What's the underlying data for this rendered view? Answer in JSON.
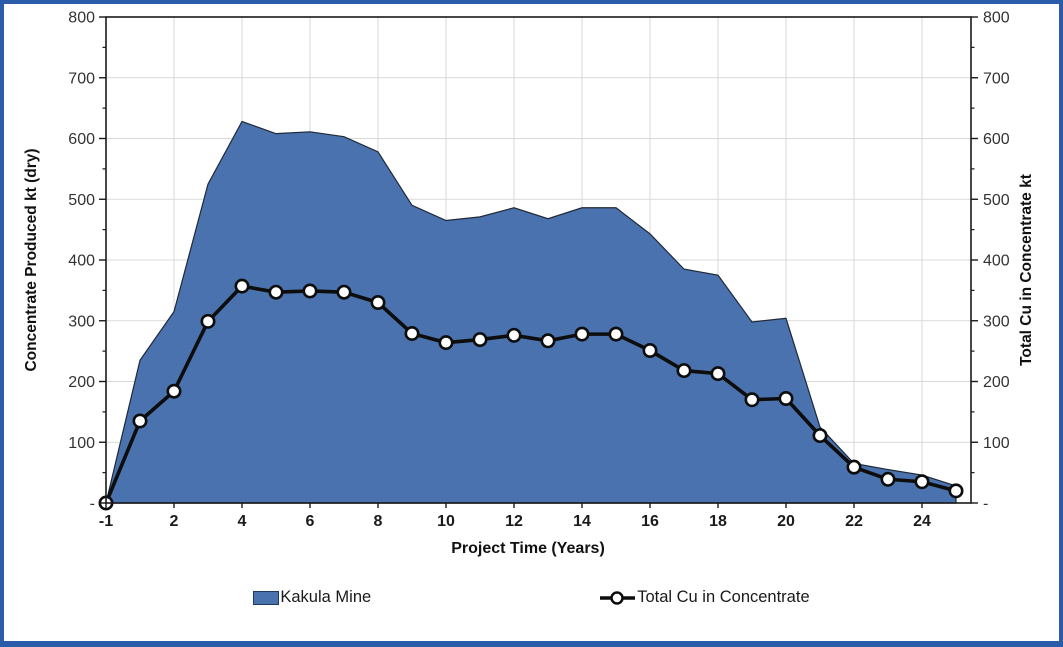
{
  "frame": {
    "border_color": "#2a5caa",
    "background": "#ffffff"
  },
  "chart_data": {
    "type": "combo-area-line",
    "title": "",
    "x_label": "Project Time (Years)",
    "y_left_label": "Concentrate Produced kt (dry)",
    "y_right_label": "Total Cu in Concentrate kt",
    "x_categories": [
      -1,
      1,
      2,
      3,
      4,
      5,
      6,
      7,
      8,
      9,
      10,
      11,
      12,
      13,
      14,
      15,
      16,
      17,
      18,
      19,
      20,
      21,
      22,
      23,
      24,
      25
    ],
    "x_tick_labels": [
      -1,
      2,
      4,
      6,
      8,
      10,
      12,
      14,
      16,
      18,
      20,
      22,
      24
    ],
    "ylim": [
      0,
      800
    ],
    "y_tick_values": [
      0,
      100,
      200,
      300,
      400,
      500,
      600,
      700,
      800
    ],
    "y_minor_step": 50,
    "zero_tick_label": "-",
    "grid": true,
    "legend_position": "bottom",
    "colors": {
      "area_fill": "#4a72ae",
      "area_outline": "#1f2937",
      "line": "#0d0d0d",
      "marker_fill": "#ffffff",
      "gridline": "#d9d9d9",
      "axis": "#1a1a1a",
      "tick_label": "#333333"
    },
    "series": [
      {
        "name": "Kakula Mine",
        "type": "area",
        "axis": "left",
        "values": [
          0,
          235,
          315,
          525,
          628,
          608,
          611,
          603,
          578,
          490,
          465,
          471,
          486,
          468,
          486,
          486,
          443,
          385,
          375,
          298,
          304,
          125,
          65,
          55,
          46,
          28
        ]
      },
      {
        "name": "Total Cu in Concentrate",
        "type": "line",
        "axis": "right",
        "marker": "circle",
        "values": [
          0,
          135,
          184,
          299,
          357,
          347,
          349,
          347,
          330,
          279,
          264,
          269,
          276,
          267,
          278,
          278,
          251,
          218,
          213,
          170,
          172,
          111,
          59,
          39,
          35,
          20
        ]
      }
    ]
  }
}
